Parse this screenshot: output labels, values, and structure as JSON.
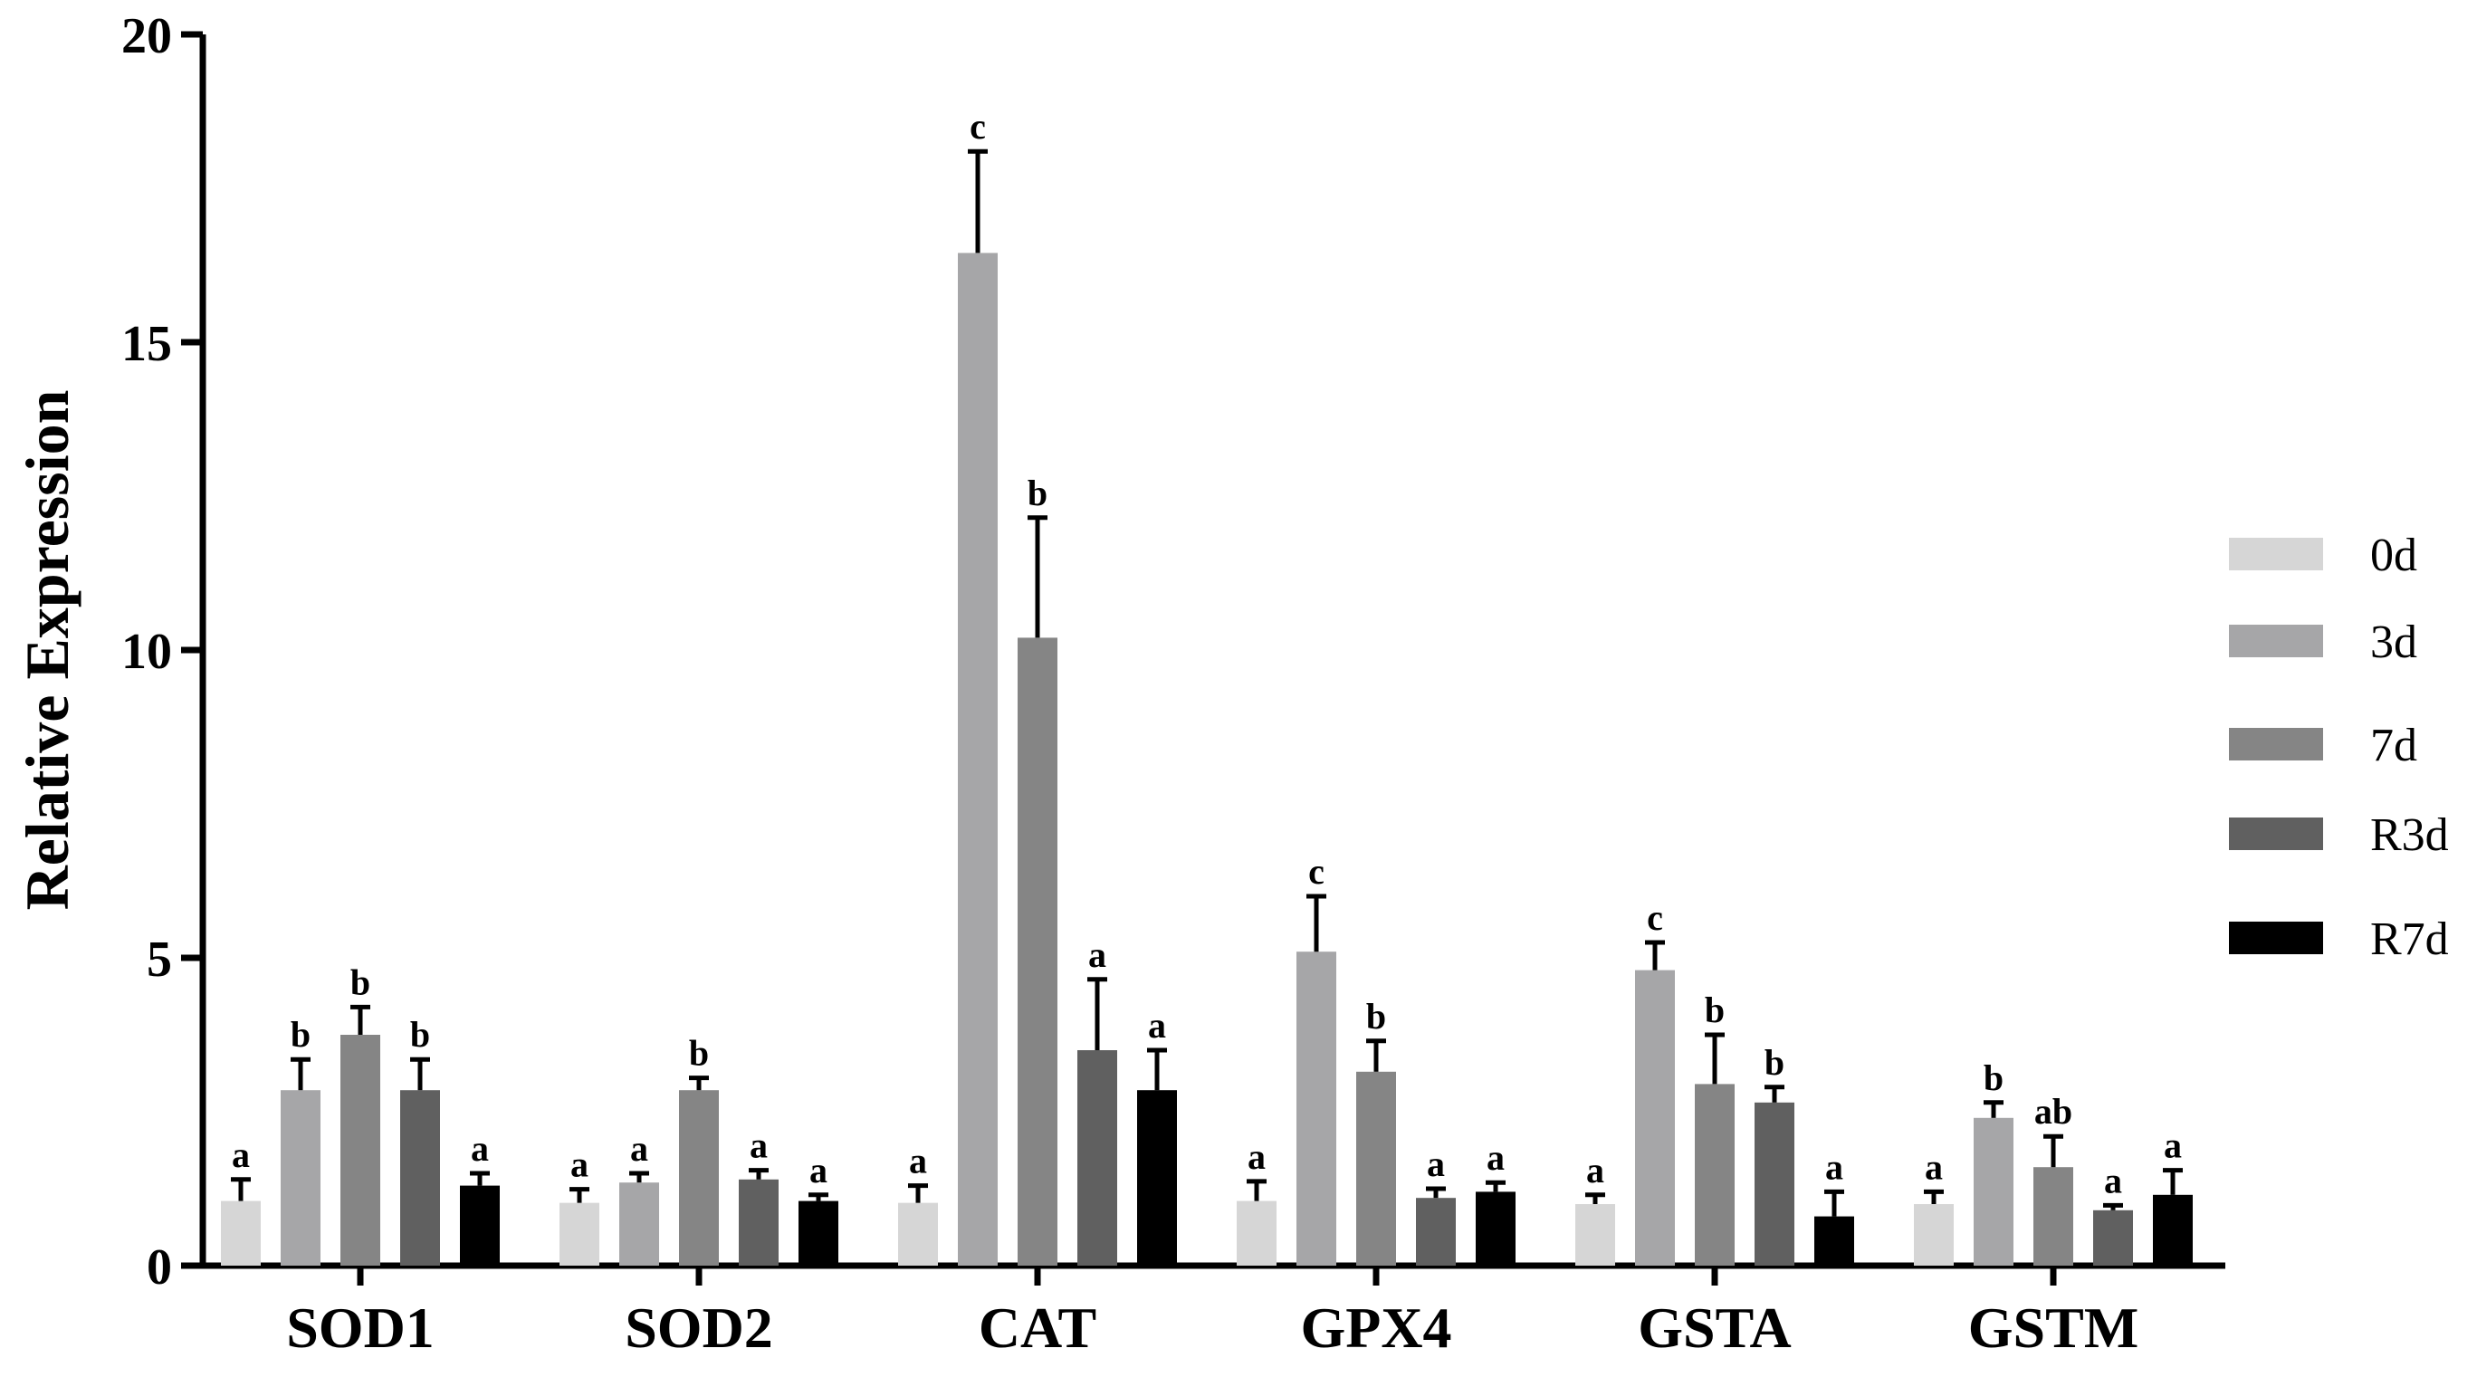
{
  "chart_data": {
    "type": "bar",
    "title": "",
    "xlabel": "",
    "ylabel": "Relative Expression",
    "ylim": [
      0,
      20
    ],
    "yticks": [
      "0",
      "5",
      "10",
      "15",
      "20"
    ],
    "grid": false,
    "legend_position": "right",
    "categories": [
      "SOD1",
      "SOD2",
      "CAT",
      "GPX4",
      "GSTA",
      "GSTM"
    ],
    "series": [
      {
        "name": "0d",
        "color": "#d6d6d6",
        "values": [
          1.05,
          1.02,
          1.02,
          1.05,
          1.0,
          1.0
        ],
        "errors": [
          0.35,
          0.22,
          0.28,
          0.32,
          0.15,
          0.2
        ],
        "labels": [
          "a",
          "a",
          "a",
          "a",
          "a",
          "a"
        ]
      },
      {
        "name": "3d",
        "color": "#a6a6a8",
        "values": [
          2.85,
          1.35,
          16.45,
          5.1,
          4.8,
          2.4
        ],
        "errors": [
          0.5,
          0.15,
          1.65,
          0.9,
          0.45,
          0.25
        ],
        "labels": [
          "b",
          "a",
          "c",
          "c",
          "c",
          "b"
        ]
      },
      {
        "name": "7d",
        "color": "#858585",
        "values": [
          3.75,
          2.85,
          10.2,
          3.15,
          2.95,
          1.6
        ],
        "errors": [
          0.45,
          0.2,
          1.95,
          0.5,
          0.8,
          0.5
        ],
        "labels": [
          "b",
          "b",
          "b",
          "b",
          "b",
          "ab"
        ]
      },
      {
        "name": "R3d",
        "color": "#606060",
        "values": [
          2.85,
          1.4,
          3.5,
          1.1,
          2.65,
          0.9
        ],
        "errors": [
          0.5,
          0.15,
          1.15,
          0.15,
          0.25,
          0.08
        ],
        "labels": [
          "b",
          "a",
          "a",
          "a",
          "b",
          "a"
        ]
      },
      {
        "name": "R7d",
        "color": "#000000",
        "values": [
          1.3,
          1.05,
          2.85,
          1.2,
          0.8,
          1.15
        ],
        "errors": [
          0.2,
          0.1,
          0.65,
          0.15,
          0.4,
          0.4
        ],
        "labels": [
          "a",
          "a",
          "a",
          "a",
          "a",
          "a"
        ]
      }
    ]
  }
}
